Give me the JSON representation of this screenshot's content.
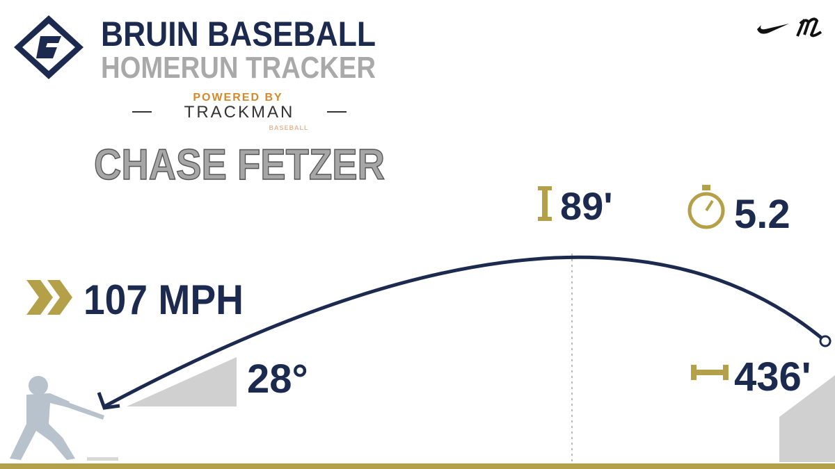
{
  "header": {
    "title": "BRUIN BASEBALL",
    "subtitle": "HOMERUN TRACKER",
    "powered_by": "POWERED BY",
    "sponsor": "TRACKMAN",
    "sponsor_sub": "BASEBALL"
  },
  "player": "CHASE FETZER",
  "stats": {
    "exit_velocity": "107 MPH",
    "launch_angle": "28°",
    "apex": "89'",
    "hang_time": "5.2",
    "distance": "436'"
  }
}
